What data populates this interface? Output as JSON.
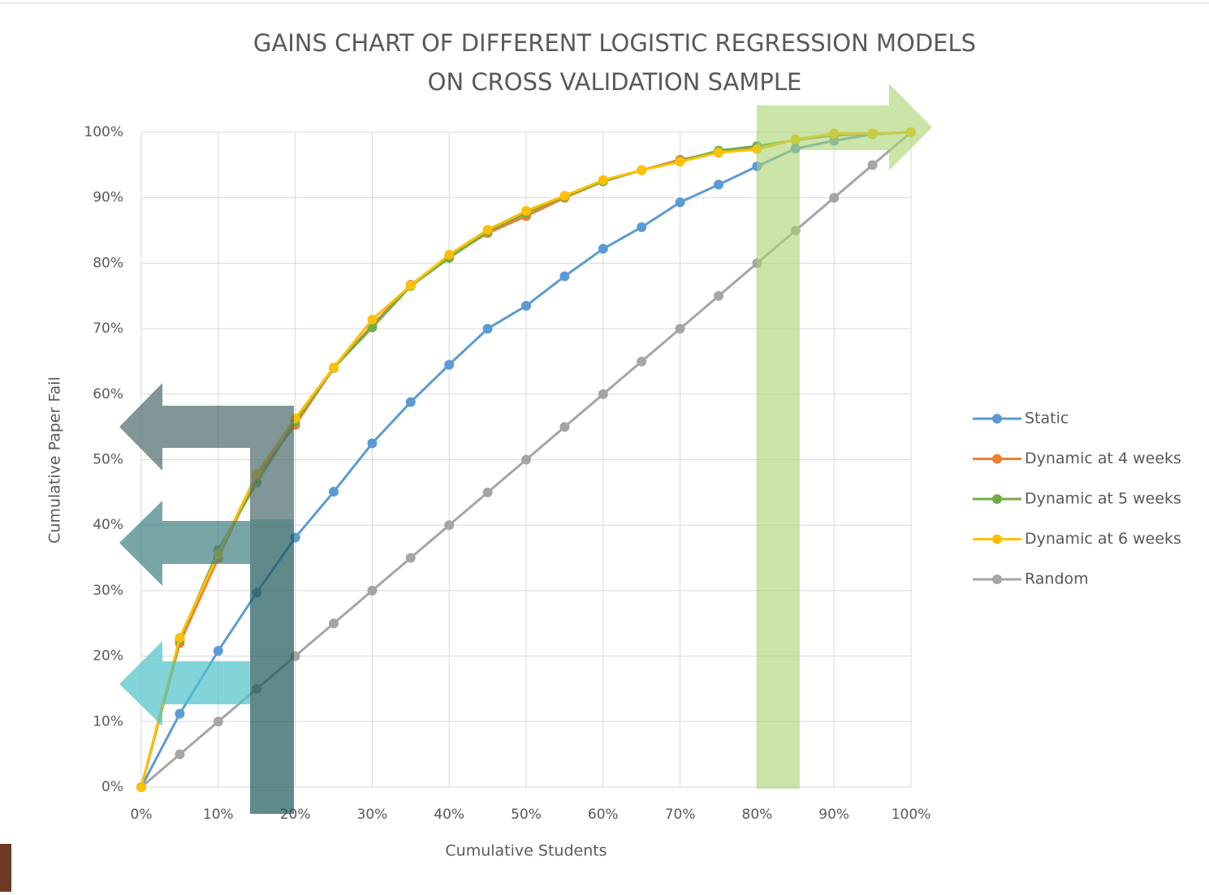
{
  "chart_data": {
    "type": "line",
    "title": [
      "GAINS CHART OF DIFFERENT LOGISTIC REGRESSION MODELS",
      "ON CROSS VALIDATION SAMPLE"
    ],
    "x_label": "Cumulative Students",
    "y_label": "Cumulative Paper Fail",
    "x": [
      0,
      5,
      10,
      15,
      20,
      25,
      30,
      35,
      40,
      45,
      50,
      55,
      60,
      65,
      70,
      75,
      80,
      85,
      90,
      95,
      100
    ],
    "series": [
      {
        "name": "Static",
        "color": "#5b9bd5",
        "values": [
          0,
          11.2,
          20.8,
          29.7,
          38.1,
          45.1,
          52.5,
          58.8,
          64.5,
          70,
          73.5,
          78,
          82.2,
          85.5,
          89.3,
          92,
          94.8,
          97.5,
          98.7,
          99.7,
          100
        ]
      },
      {
        "name": "Dynamic at 4 weeks",
        "color": "#ed7d31",
        "values": [
          0,
          22,
          35,
          47.5,
          55.3,
          64,
          70.5,
          76.7,
          81,
          84.6,
          87.2,
          90,
          92.5,
          94.2,
          95.8,
          96.9,
          97.5,
          98.9,
          99.5,
          99.8,
          100
        ]
      },
      {
        "name": "Dynamic at 5 weeks",
        "color": "#70ad47",
        "values": [
          0,
          22.5,
          36.2,
          46.5,
          55.8,
          64,
          70.2,
          76.5,
          80.8,
          84.8,
          87.7,
          90.2,
          92.5,
          94.2,
          95.6,
          97.2,
          97.9,
          98.8,
          99.6,
          99.8,
          100
        ]
      },
      {
        "name": "Dynamic at 6 weeks",
        "color": "#ffc000",
        "values": [
          0,
          22.8,
          35.6,
          47.8,
          56.3,
          64.1,
          71.4,
          76.6,
          81.3,
          85.1,
          88,
          90.3,
          92.7,
          94.2,
          95.5,
          96.9,
          97.4,
          98.9,
          99.8,
          99.8,
          100
        ]
      },
      {
        "name": "Random",
        "color": "#a5a5a5",
        "values": [
          0,
          5,
          10,
          15,
          20,
          25,
          30,
          35,
          40,
          45,
          50,
          55,
          60,
          65,
          70,
          75,
          80,
          85,
          90,
          95,
          100
        ]
      }
    ],
    "xlim": [
      0,
      100
    ],
    "xticks": [
      {
        "value": 0,
        "label": "0%"
      },
      {
        "value": 10,
        "label": "10%"
      },
      {
        "value": 20,
        "label": "20%"
      },
      {
        "value": 30,
        "label": "30%"
      },
      {
        "value": 40,
        "label": "40%"
      },
      {
        "value": 50,
        "label": "50%"
      },
      {
        "value": 60,
        "label": "60%"
      },
      {
        "value": 70,
        "label": "70%"
      },
      {
        "value": 80,
        "label": "80%"
      },
      {
        "value": 90,
        "label": "90%"
      },
      {
        "value": 100,
        "label": "100%"
      }
    ],
    "ylim": [
      0,
      100
    ],
    "yticks": [
      {
        "value": 0,
        "label": "0%"
      },
      {
        "value": 10,
        "label": "10%"
      },
      {
        "value": 20,
        "label": "20%"
      },
      {
        "value": 30,
        "label": "30%"
      },
      {
        "value": 40,
        "label": "40%"
      },
      {
        "value": 50,
        "label": "50%"
      },
      {
        "value": 60,
        "label": "60%"
      },
      {
        "value": 70,
        "label": "70%"
      },
      {
        "value": 80,
        "label": "80%"
      },
      {
        "value": 90,
        "label": "90%"
      },
      {
        "value": 100,
        "label": "100%"
      }
    ],
    "grid": true,
    "legend": "right"
  }
}
